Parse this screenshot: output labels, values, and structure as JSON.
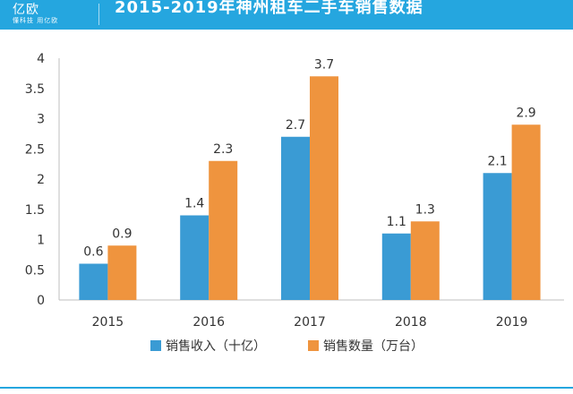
{
  "header": {
    "logo_text": "亿欧",
    "logo_tagline": "懂科技 用亿欧",
    "title": "2015-2019年神州租车二手车销售数据"
  },
  "colors": {
    "header_bg": "#25a6df",
    "series1": "#3a9bd4",
    "series2": "#ef943e"
  },
  "chart_data": {
    "type": "bar",
    "title": "2015-2019年神州租车二手车销售数据",
    "categories": [
      "2015",
      "2016",
      "2017",
      "2018",
      "2019"
    ],
    "series": [
      {
        "name": "销售收入（十亿）",
        "values": [
          0.6,
          1.4,
          2.7,
          1.1,
          2.1
        ],
        "labels": [
          "0.6",
          "1.4",
          "2.7",
          "1.1",
          "2.1"
        ]
      },
      {
        "name": "销售数量（万台）",
        "values": [
          0.9,
          2.3,
          3.7,
          1.3,
          2.9
        ],
        "labels": [
          "0.9",
          "2.3",
          "3.7",
          "1.3",
          "2.9"
        ]
      }
    ],
    "yticks": [
      "0",
      "0.5",
      "1",
      "1.5",
      "2",
      "2.5",
      "3",
      "3.5",
      "4"
    ],
    "ylim": [
      0,
      4
    ],
    "legend_position": "bottom",
    "grid": false
  }
}
